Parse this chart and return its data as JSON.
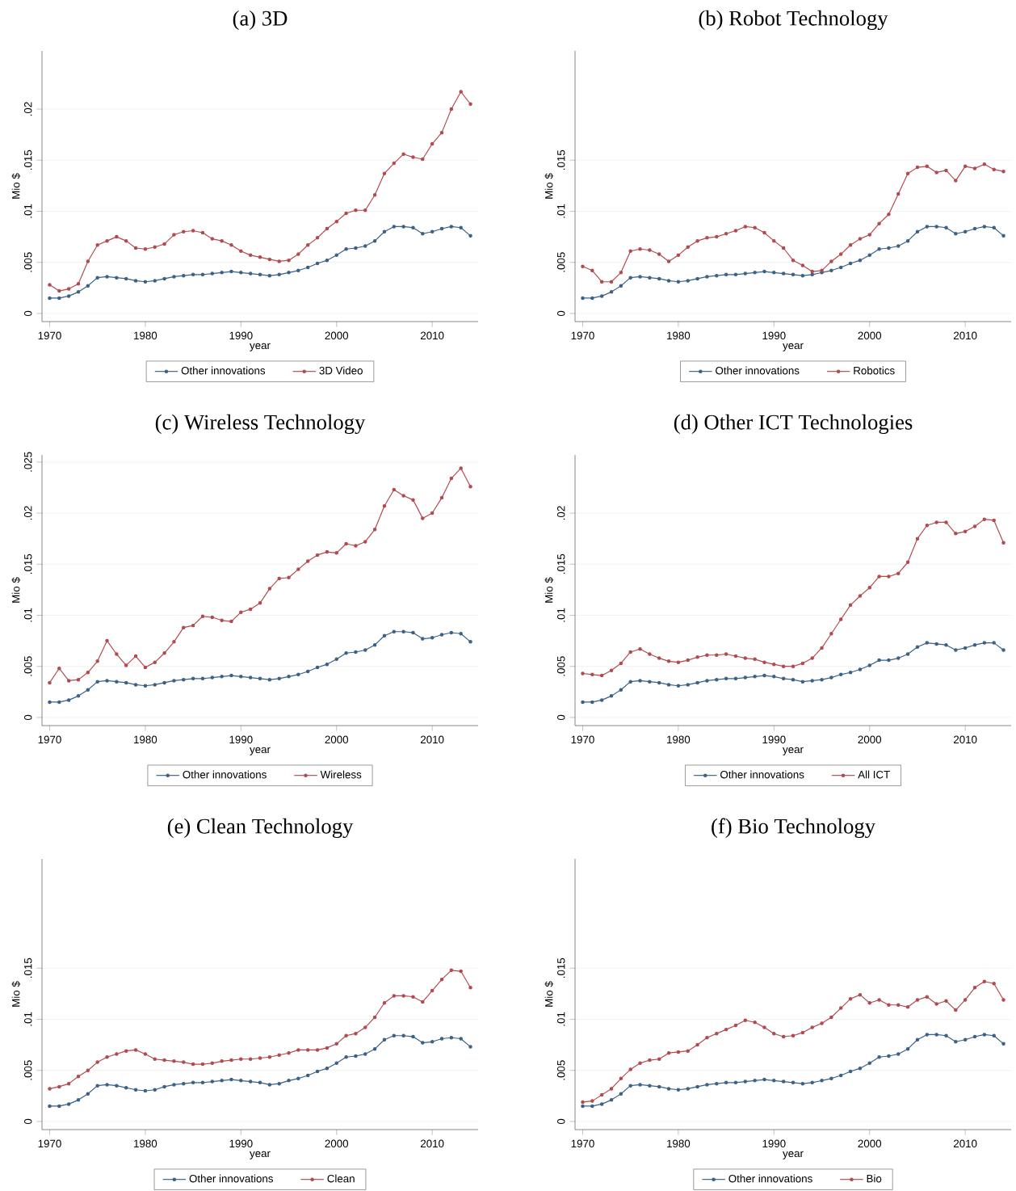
{
  "chart_data": [
    {
      "type": "line",
      "title": "(a) 3D",
      "xlabel": "year",
      "ylabel": "Mio $",
      "grid": "y",
      "legend": "bottom",
      "marker": "circle",
      "x": [
        1970,
        1971,
        1972,
        1973,
        1974,
        1975,
        1976,
        1977,
        1978,
        1979,
        1980,
        1981,
        1982,
        1983,
        1984,
        1985,
        1986,
        1987,
        1988,
        1989,
        1990,
        1991,
        1992,
        1993,
        1994,
        1995,
        1996,
        1997,
        1998,
        1999,
        2000,
        2001,
        2002,
        2003,
        2004,
        2005,
        2006,
        2007,
        2008,
        2009,
        2010,
        2011,
        2012,
        2013,
        2014
      ],
      "xlim": [
        1969.2,
        2014.8
      ],
      "ylim": [
        -0.0008,
        0.0257
      ],
      "xticks": [
        1970,
        1980,
        1990,
        2000,
        2010
      ],
      "yticks": [
        0,
        {
          "value": 0.005,
          "label": ".005"
        },
        {
          "value": 0.01,
          "label": ".01"
        },
        {
          "value": 0.015,
          "label": ".015"
        },
        {
          "value": 0.02,
          "label": ".02"
        }
      ],
      "series": [
        {
          "name": "Other innovations",
          "color": "#3a6187",
          "values": [
            0.0015,
            0.0015,
            0.0017,
            0.0021,
            0.0027,
            0.0035,
            0.0036,
            0.0035,
            0.0034,
            0.0032,
            0.0031,
            0.0032,
            0.0034,
            0.0036,
            0.0037,
            0.0038,
            0.0038,
            0.0039,
            0.004,
            0.0041,
            0.004,
            0.0039,
            0.0038,
            0.0037,
            0.0038,
            0.004,
            0.0042,
            0.0045,
            0.0049,
            0.0052,
            0.0057,
            0.0063,
            0.0064,
            0.0066,
            0.0071,
            0.008,
            0.0085,
            0.0085,
            0.0084,
            0.0078,
            0.008,
            0.0083,
            0.0085,
            0.0084,
            0.0076
          ]
        },
        {
          "name": "3D Video",
          "color": "#b24a4f",
          "values": [
            0.0028,
            0.0022,
            0.0024,
            0.0029,
            0.0051,
            0.0067,
            0.0071,
            0.0075,
            0.0071,
            0.0064,
            0.0063,
            0.0065,
            0.0068,
            0.0077,
            0.008,
            0.0081,
            0.0079,
            0.0073,
            0.0071,
            0.0067,
            0.0061,
            0.0057,
            0.0055,
            0.0053,
            0.0051,
            0.0052,
            0.0058,
            0.0067,
            0.0074,
            0.0083,
            0.009,
            0.0098,
            0.0101,
            0.0101,
            0.0116,
            0.0137,
            0.0147,
            0.0156,
            0.0153,
            0.0151,
            0.0166,
            0.0177,
            0.02,
            0.0217,
            0.0205
          ]
        }
      ]
    },
    {
      "type": "line",
      "title": "(b) Robot Technology",
      "xlabel": "year",
      "ylabel": "Mio $",
      "grid": "y",
      "legend": "bottom",
      "marker": "circle",
      "x": [
        1970,
        1971,
        1972,
        1973,
        1974,
        1975,
        1976,
        1977,
        1978,
        1979,
        1980,
        1981,
        1982,
        1983,
        1984,
        1985,
        1986,
        1987,
        1988,
        1989,
        1990,
        1991,
        1992,
        1993,
        1994,
        1995,
        1996,
        1997,
        1998,
        1999,
        2000,
        2001,
        2002,
        2003,
        2004,
        2005,
        2006,
        2007,
        2008,
        2009,
        2010,
        2011,
        2012,
        2013,
        2014
      ],
      "xlim": [
        1969.2,
        2014.8
      ],
      "ylim": [
        -0.0008,
        0.0257
      ],
      "xticks": [
        1970,
        1980,
        1990,
        2000,
        2010
      ],
      "yticks": [
        0,
        {
          "value": 0.005,
          "label": ".005"
        },
        {
          "value": 0.01,
          "label": ".01"
        },
        {
          "value": 0.015,
          "label": ".015"
        }
      ],
      "series": [
        {
          "name": "Other innovations",
          "color": "#3a6187",
          "values": [
            0.0015,
            0.0015,
            0.0017,
            0.0021,
            0.0027,
            0.0035,
            0.0036,
            0.0035,
            0.0034,
            0.0032,
            0.0031,
            0.0032,
            0.0034,
            0.0036,
            0.0037,
            0.0038,
            0.0038,
            0.0039,
            0.004,
            0.0041,
            0.004,
            0.0039,
            0.0038,
            0.0037,
            0.0038,
            0.004,
            0.0042,
            0.0045,
            0.0049,
            0.0052,
            0.0057,
            0.0063,
            0.0064,
            0.0066,
            0.0071,
            0.008,
            0.0085,
            0.0085,
            0.0084,
            0.0078,
            0.008,
            0.0083,
            0.0085,
            0.0084,
            0.0076
          ]
        },
        {
          "name": "Robotics",
          "color": "#b24a4f",
          "values": [
            0.0046,
            0.0042,
            0.0031,
            0.0031,
            0.004,
            0.0061,
            0.0063,
            0.0062,
            0.0058,
            0.0051,
            0.0057,
            0.0065,
            0.0071,
            0.0074,
            0.0075,
            0.0078,
            0.0081,
            0.0085,
            0.0084,
            0.0079,
            0.0071,
            0.0064,
            0.0052,
            0.0047,
            0.0041,
            0.0042,
            0.0051,
            0.0058,
            0.0067,
            0.0073,
            0.0077,
            0.0088,
            0.0097,
            0.0117,
            0.0137,
            0.0143,
            0.0144,
            0.0138,
            0.014,
            0.013,
            0.0144,
            0.0142,
            0.0146,
            0.0141,
            0.0139
          ]
        }
      ]
    },
    {
      "type": "line",
      "title": "(c) Wireless Technology",
      "xlabel": "year",
      "ylabel": "Mio $",
      "grid": "y",
      "legend": "bottom",
      "marker": "circle",
      "x": [
        1970,
        1971,
        1972,
        1973,
        1974,
        1975,
        1976,
        1977,
        1978,
        1979,
        1980,
        1981,
        1982,
        1983,
        1984,
        1985,
        1986,
        1987,
        1988,
        1989,
        1990,
        1991,
        1992,
        1993,
        1994,
        1995,
        1996,
        1997,
        1998,
        1999,
        2000,
        2001,
        2002,
        2003,
        2004,
        2005,
        2006,
        2007,
        2008,
        2009,
        2010,
        2011,
        2012,
        2013,
        2014
      ],
      "xlim": [
        1969.2,
        2014.8
      ],
      "ylim": [
        -0.0008,
        0.0257
      ],
      "xticks": [
        1970,
        1980,
        1990,
        2000,
        2010
      ],
      "yticks": [
        0,
        {
          "value": 0.005,
          "label": ".005"
        },
        {
          "value": 0.01,
          "label": ".01"
        },
        {
          "value": 0.015,
          "label": ".015"
        },
        {
          "value": 0.02,
          "label": ".02"
        },
        {
          "value": 0.025,
          "label": ".025"
        }
      ],
      "series": [
        {
          "name": "Other innovations",
          "color": "#3a6187",
          "values": [
            0.0015,
            0.0015,
            0.0017,
            0.0021,
            0.0027,
            0.0035,
            0.0036,
            0.0035,
            0.0034,
            0.0032,
            0.0031,
            0.0032,
            0.0034,
            0.0036,
            0.0037,
            0.0038,
            0.0038,
            0.0039,
            0.004,
            0.0041,
            0.004,
            0.0039,
            0.0038,
            0.0037,
            0.0038,
            0.004,
            0.0042,
            0.0045,
            0.0049,
            0.0052,
            0.0057,
            0.0063,
            0.0064,
            0.0066,
            0.0071,
            0.008,
            0.0084,
            0.0084,
            0.0083,
            0.0077,
            0.0078,
            0.0081,
            0.0083,
            0.0082,
            0.0074
          ]
        },
        {
          "name": "Wireless",
          "color": "#b24a4f",
          "values": [
            0.0034,
            0.0048,
            0.0036,
            0.0037,
            0.0044,
            0.0055,
            0.0075,
            0.0062,
            0.0051,
            0.006,
            0.0049,
            0.0054,
            0.0063,
            0.0074,
            0.0088,
            0.009,
            0.0099,
            0.0098,
            0.0095,
            0.0094,
            0.0103,
            0.0106,
            0.0112,
            0.0126,
            0.0136,
            0.0137,
            0.0145,
            0.0153,
            0.0159,
            0.0162,
            0.0161,
            0.017,
            0.0168,
            0.0172,
            0.0184,
            0.0207,
            0.0223,
            0.0217,
            0.0213,
            0.0195,
            0.02,
            0.0215,
            0.0234,
            0.0244,
            0.0226
          ]
        }
      ]
    },
    {
      "type": "line",
      "title": "(d) Other ICT Technologies",
      "xlabel": "year",
      "ylabel": "Mio $",
      "grid": "y",
      "legend": "bottom",
      "marker": "circle",
      "x": [
        1970,
        1971,
        1972,
        1973,
        1974,
        1975,
        1976,
        1977,
        1978,
        1979,
        1980,
        1981,
        1982,
        1983,
        1984,
        1985,
        1986,
        1987,
        1988,
        1989,
        1990,
        1991,
        1992,
        1993,
        1994,
        1995,
        1996,
        1997,
        1998,
        1999,
        2000,
        2001,
        2002,
        2003,
        2004,
        2005,
        2006,
        2007,
        2008,
        2009,
        2010,
        2011,
        2012,
        2013,
        2014
      ],
      "xlim": [
        1969.2,
        2014.8
      ],
      "ylim": [
        -0.0008,
        0.0257
      ],
      "xticks": [
        1970,
        1980,
        1990,
        2000,
        2010
      ],
      "yticks": [
        0,
        {
          "value": 0.005,
          "label": ".005"
        },
        {
          "value": 0.01,
          "label": ".01"
        },
        {
          "value": 0.015,
          "label": ".015"
        },
        {
          "value": 0.02,
          "label": ".02"
        }
      ],
      "series": [
        {
          "name": "Other innovations",
          "color": "#3a6187",
          "values": [
            0.0015,
            0.0015,
            0.0017,
            0.0021,
            0.0027,
            0.0035,
            0.0036,
            0.0035,
            0.0034,
            0.0032,
            0.0031,
            0.0032,
            0.0034,
            0.0036,
            0.0037,
            0.0038,
            0.0038,
            0.0039,
            0.004,
            0.0041,
            0.004,
            0.0038,
            0.0037,
            0.0035,
            0.0036,
            0.0037,
            0.0039,
            0.0042,
            0.0044,
            0.0047,
            0.0051,
            0.0056,
            0.0056,
            0.0058,
            0.0062,
            0.0069,
            0.0073,
            0.0072,
            0.0071,
            0.0066,
            0.0068,
            0.0071,
            0.0073,
            0.0073,
            0.0066
          ]
        },
        {
          "name": "All ICT",
          "color": "#b24a4f",
          "values": [
            0.0043,
            0.0042,
            0.0041,
            0.0046,
            0.0053,
            0.0064,
            0.0067,
            0.0062,
            0.0058,
            0.0055,
            0.0054,
            0.0056,
            0.0059,
            0.0061,
            0.0061,
            0.0062,
            0.006,
            0.0058,
            0.0057,
            0.0054,
            0.0052,
            0.005,
            0.005,
            0.0053,
            0.0058,
            0.0068,
            0.0082,
            0.0096,
            0.011,
            0.0119,
            0.0127,
            0.0138,
            0.0138,
            0.0141,
            0.0152,
            0.0175,
            0.0188,
            0.0191,
            0.0191,
            0.018,
            0.0182,
            0.0187,
            0.0194,
            0.0193,
            0.0171
          ]
        }
      ]
    },
    {
      "type": "line",
      "title": "(e) Clean Technology",
      "xlabel": "year",
      "ylabel": "Mio $",
      "grid": "y",
      "legend": "bottom",
      "marker": "circle",
      "x": [
        1970,
        1971,
        1972,
        1973,
        1974,
        1975,
        1976,
        1977,
        1978,
        1979,
        1980,
        1981,
        1982,
        1983,
        1984,
        1985,
        1986,
        1987,
        1988,
        1989,
        1990,
        1991,
        1992,
        1993,
        1994,
        1995,
        1996,
        1997,
        1998,
        1999,
        2000,
        2001,
        2002,
        2003,
        2004,
        2005,
        2006,
        2007,
        2008,
        2009,
        2010,
        2011,
        2012,
        2013,
        2014
      ],
      "xlim": [
        1969.2,
        2014.8
      ],
      "ylim": [
        -0.0008,
        0.0257
      ],
      "xticks": [
        1970,
        1980,
        1990,
        2000,
        2010
      ],
      "yticks": [
        0,
        {
          "value": 0.005,
          "label": ".005"
        },
        {
          "value": 0.01,
          "label": ".01"
        },
        {
          "value": 0.015,
          "label": ".015"
        }
      ],
      "series": [
        {
          "name": "Other innovations",
          "color": "#3a6187",
          "values": [
            0.0015,
            0.0015,
            0.0017,
            0.0021,
            0.0027,
            0.0035,
            0.0036,
            0.0035,
            0.0033,
            0.0031,
            0.003,
            0.0031,
            0.0034,
            0.0036,
            0.0037,
            0.0038,
            0.0038,
            0.0039,
            0.004,
            0.0041,
            0.004,
            0.0039,
            0.0038,
            0.0036,
            0.0037,
            0.004,
            0.0042,
            0.0045,
            0.0049,
            0.0052,
            0.0057,
            0.0063,
            0.0064,
            0.0066,
            0.0071,
            0.008,
            0.0084,
            0.0084,
            0.0083,
            0.0077,
            0.0078,
            0.0081,
            0.0082,
            0.0081,
            0.0073
          ]
        },
        {
          "name": "Clean",
          "color": "#b24a4f",
          "values": [
            0.0032,
            0.0034,
            0.0037,
            0.0044,
            0.005,
            0.0058,
            0.0063,
            0.0066,
            0.0069,
            0.007,
            0.0066,
            0.0061,
            0.006,
            0.0059,
            0.0058,
            0.0056,
            0.0056,
            0.0057,
            0.0059,
            0.006,
            0.0061,
            0.0061,
            0.0062,
            0.0063,
            0.0065,
            0.0067,
            0.007,
            0.007,
            0.007,
            0.0072,
            0.0076,
            0.0084,
            0.0086,
            0.0092,
            0.0102,
            0.0116,
            0.0123,
            0.0123,
            0.0122,
            0.0117,
            0.0128,
            0.0139,
            0.0148,
            0.0147,
            0.0131
          ]
        }
      ]
    },
    {
      "type": "line",
      "title": "(f) Bio Technology",
      "xlabel": "year",
      "ylabel": "Mio $",
      "grid": "y",
      "legend": "bottom",
      "marker": "circle",
      "x": [
        1970,
        1971,
        1972,
        1973,
        1974,
        1975,
        1976,
        1977,
        1978,
        1979,
        1980,
        1981,
        1982,
        1983,
        1984,
        1985,
        1986,
        1987,
        1988,
        1989,
        1990,
        1991,
        1992,
        1993,
        1994,
        1995,
        1996,
        1997,
        1998,
        1999,
        2000,
        2001,
        2002,
        2003,
        2004,
        2005,
        2006,
        2007,
        2008,
        2009,
        2010,
        2011,
        2012,
        2013,
        2014
      ],
      "xlim": [
        1969.2,
        2014.8
      ],
      "ylim": [
        -0.0008,
        0.0257
      ],
      "xticks": [
        1970,
        1980,
        1990,
        2000,
        2010
      ],
      "yticks": [
        0,
        {
          "value": 0.005,
          "label": ".005"
        },
        {
          "value": 0.01,
          "label": ".01"
        },
        {
          "value": 0.015,
          "label": ".015"
        }
      ],
      "series": [
        {
          "name": "Other innovations",
          "color": "#3a6187",
          "values": [
            0.0015,
            0.0015,
            0.0017,
            0.0021,
            0.0027,
            0.0035,
            0.0036,
            0.0035,
            0.0034,
            0.0032,
            0.0031,
            0.0032,
            0.0034,
            0.0036,
            0.0037,
            0.0038,
            0.0038,
            0.0039,
            0.004,
            0.0041,
            0.004,
            0.0039,
            0.0038,
            0.0037,
            0.0038,
            0.004,
            0.0042,
            0.0045,
            0.0049,
            0.0052,
            0.0057,
            0.0063,
            0.0064,
            0.0066,
            0.0071,
            0.008,
            0.0085,
            0.0085,
            0.0084,
            0.0078,
            0.008,
            0.0083,
            0.0085,
            0.0084,
            0.0076
          ]
        },
        {
          "name": "Bio",
          "color": "#b24a4f",
          "values": [
            0.0019,
            0.002,
            0.0026,
            0.0032,
            0.0042,
            0.0051,
            0.0057,
            0.006,
            0.0061,
            0.0067,
            0.0068,
            0.0069,
            0.0075,
            0.0082,
            0.0086,
            0.009,
            0.0094,
            0.0099,
            0.0097,
            0.0092,
            0.0086,
            0.0083,
            0.0084,
            0.0087,
            0.0092,
            0.0096,
            0.0102,
            0.0111,
            0.012,
            0.0124,
            0.0116,
            0.0119,
            0.0114,
            0.0114,
            0.0112,
            0.0119,
            0.0122,
            0.0115,
            0.0118,
            0.0109,
            0.0119,
            0.0131,
            0.0137,
            0.0135,
            0.0119
          ]
        }
      ]
    }
  ]
}
